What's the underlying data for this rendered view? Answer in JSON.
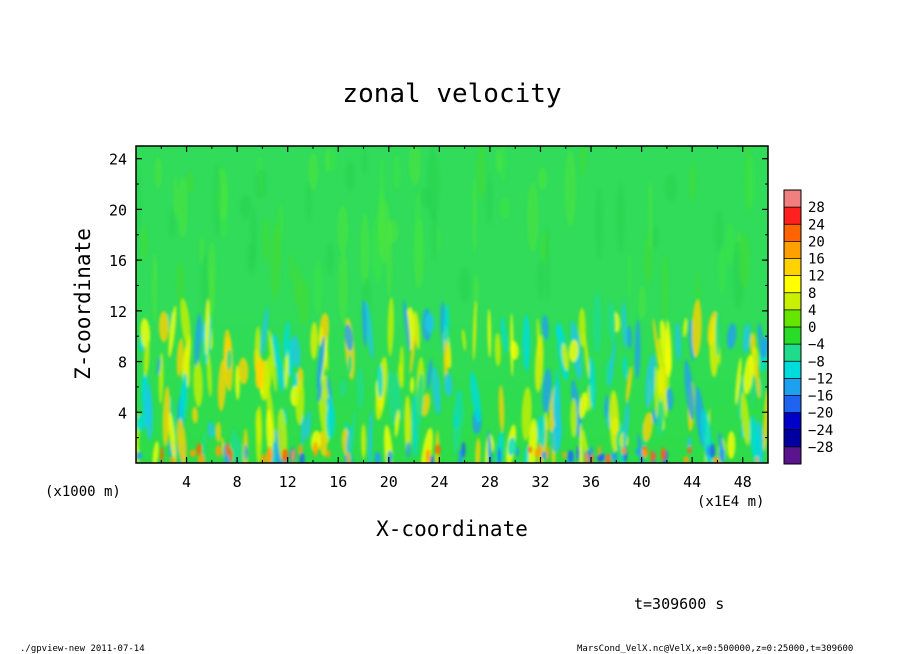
{
  "chart_data": {
    "type": "heatmap",
    "title": "zonal velocity",
    "xlabel": "X-coordinate",
    "ylabel": "Z-coordinate",
    "x_unit": "(x1E4 m)",
    "y_unit": "(x1000 m)",
    "xlim": [
      0,
      50
    ],
    "ylim": [
      0,
      25
    ],
    "x_ticks": [
      "4",
      "8",
      "12",
      "16",
      "20",
      "24",
      "28",
      "32",
      "36",
      "40",
      "44",
      "48"
    ],
    "y_ticks": [
      "4",
      "8",
      "12",
      "16",
      "20",
      "24"
    ],
    "colorbar": {
      "labels": [
        "28",
        "24",
        "20",
        "16",
        "12",
        "8",
        "4",
        "0",
        "−4",
        "−8",
        "−12",
        "−16",
        "−20",
        "−24",
        "−28"
      ],
      "colors": [
        "#f08080",
        "#ff2020",
        "#ff6400",
        "#ffa000",
        "#ffd200",
        "#ffff00",
        "#c8f000",
        "#64e600",
        "#28dc28",
        "#1edc8c",
        "#00dcdc",
        "#1ea0f0",
        "#1e64f0",
        "#0000c8",
        "#0000a0",
        "#5a148c"
      ]
    },
    "time_annotation": "t=309600 s",
    "footer_left": "./gpview-new  2011-07-14",
    "footer_right": "MarsCond_VelX.nc@VelX,x=0:500000,z=0:25000,t=309600"
  }
}
